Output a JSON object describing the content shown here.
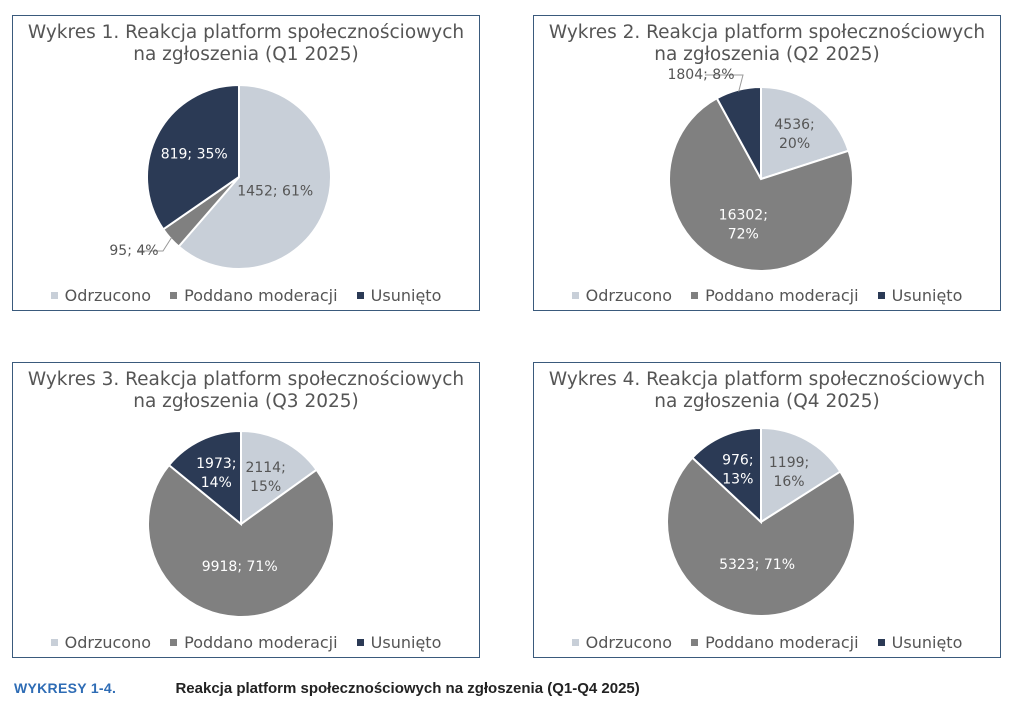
{
  "colors": {
    "odrzucono": "#c8cfd8",
    "poddano": "#808080",
    "usunieto": "#2b3a55",
    "border": "#3a5a7c",
    "caption_label": "#2e6cb5"
  },
  "legend": [
    "Odrzucono",
    "Poddano moderacji",
    "Usunięto"
  ],
  "caption": {
    "label": "WYKRESY 1-4.",
    "text": "Reakcja platform społecznościowych na zgłoszenia  (Q1-Q4 2025)"
  },
  "chart_data": [
    {
      "type": "pie",
      "title_lines": [
        "Wykres 1. Reakcja platform społecznościowych",
        "na zgłoszenia (Q1 2025)"
      ],
      "categories": [
        "Odrzucono",
        "Poddano moderacji",
        "Usunięto"
      ],
      "values": [
        1452,
        95,
        819
      ],
      "percents": [
        61,
        4,
        35
      ],
      "labels": [
        [
          "1452; 61%"
        ],
        [
          "95; 4%"
        ],
        [
          "819; 35%"
        ]
      ]
    },
    {
      "type": "pie",
      "title_lines": [
        "Wykres 2. Reakcja platform społecznościowych",
        "na zgłoszenia (Q2 2025)"
      ],
      "categories": [
        "Odrzucono",
        "Poddano moderacji",
        "Usunięto"
      ],
      "values": [
        4536,
        16302,
        1804
      ],
      "percents": [
        20,
        72,
        8
      ],
      "labels": [
        [
          "4536;",
          "20%"
        ],
        [
          "16302;",
          "72%"
        ],
        [
          "1804; 8%"
        ]
      ]
    },
    {
      "type": "pie",
      "title_lines": [
        "Wykres 3. Reakcja platform społecznościowych",
        "na zgłoszenia (Q3 2025)"
      ],
      "categories": [
        "Odrzucono",
        "Poddano moderacji",
        "Usunięto"
      ],
      "values": [
        2114,
        9918,
        1973
      ],
      "percents": [
        15,
        71,
        14
      ],
      "labels": [
        [
          "2114;",
          "15%"
        ],
        [
          "9918; 71%"
        ],
        [
          "1973;",
          "14%"
        ]
      ]
    },
    {
      "type": "pie",
      "title_lines": [
        "Wykres 4. Reakcja platform społecznościowych",
        "na zgłoszenia (Q4 2025)"
      ],
      "categories": [
        "Odrzucono",
        "Poddano moderacji",
        "Usunięto"
      ],
      "values": [
        1199,
        5323,
        976
      ],
      "percents": [
        16,
        71,
        13
      ],
      "labels": [
        [
          "1199;",
          "16%"
        ],
        [
          "5323; 71%"
        ],
        [
          "976;",
          "13%"
        ]
      ]
    }
  ]
}
